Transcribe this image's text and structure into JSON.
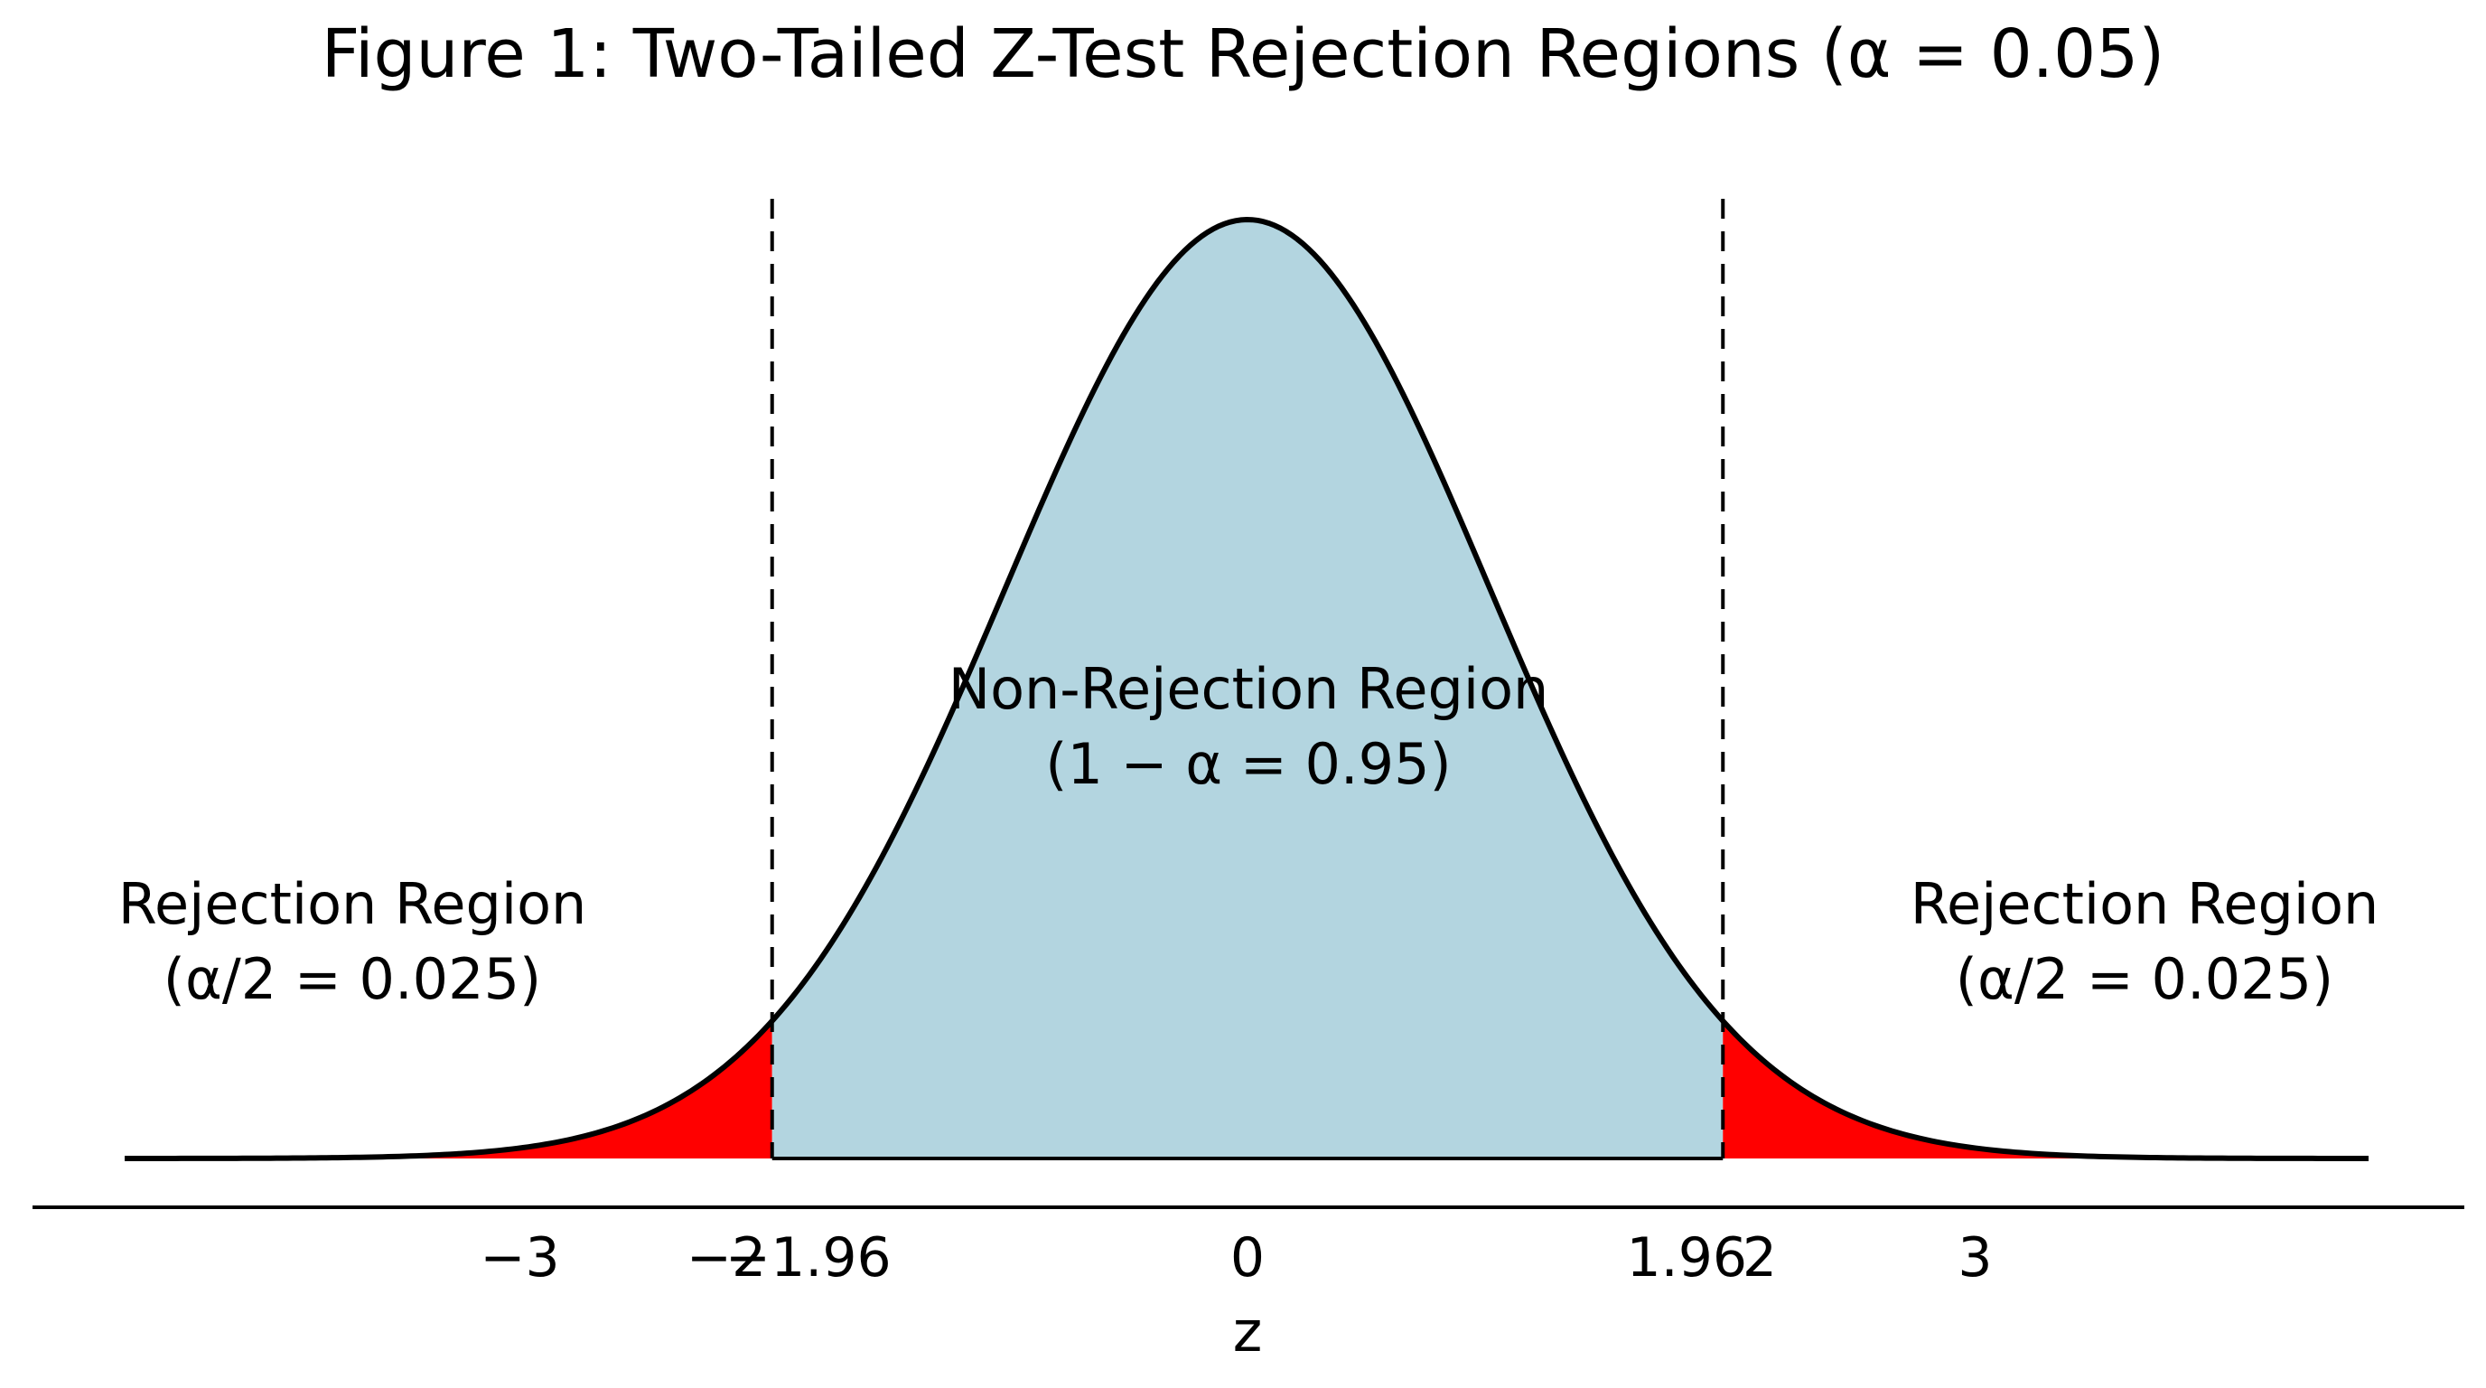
{
  "chart_data": {
    "type": "area",
    "title": "Figure 1: Two-Tailed Z-Test Rejection Regions (α = 0.05)",
    "xlabel": "z",
    "ylabel": "",
    "xlim": [
      -4.0,
      4.0
    ],
    "ylim": [
      0,
      0.4
    ],
    "grid": false,
    "distribution": "standard normal",
    "critical_values": [
      -1.96,
      1.96
    ],
    "x_ticks": [
      {
        "value": -3,
        "label": "−3"
      },
      {
        "value": -2,
        "label": "−2"
      },
      {
        "value": -1.96,
        "label": "−1.96"
      },
      {
        "value": 0,
        "label": "0"
      },
      {
        "value": 1.96,
        "label": "1.96"
      },
      {
        "value": 2,
        "label": "2"
      },
      {
        "value": 3,
        "label": "3"
      }
    ],
    "regions": [
      {
        "name": "left_rejection",
        "from": -4.0,
        "to": -1.96,
        "color": "#ff0000",
        "label_line1": "Rejection Region",
        "label_line2": "(α/2 = 0.025)"
      },
      {
        "name": "non_rejection",
        "from": -1.96,
        "to": 1.96,
        "color": "#b3d5e0",
        "label_line1": "Non-Rejection Region",
        "label_line2": "(1 − α = 0.95)"
      },
      {
        "name": "right_rejection",
        "from": 1.96,
        "to": 4.0,
        "color": "#ff0000",
        "label_line1": "Rejection Region",
        "label_line2": "(α/2 = 0.025)"
      }
    ]
  }
}
